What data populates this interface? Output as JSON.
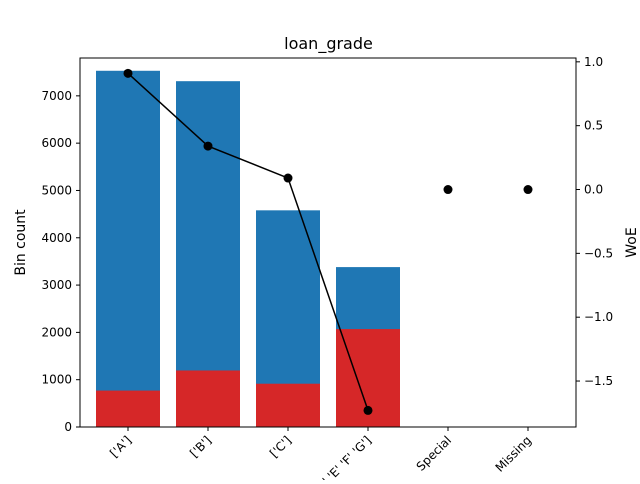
{
  "chart_data": {
    "type": "bar",
    "title": "loan_grade",
    "ylabel": "Bin count",
    "y2label": "WoE",
    "categories": [
      "['A']",
      "['B']",
      "['C']",
      "['D' 'E' 'F' 'G']",
      "Special",
      "Missing"
    ],
    "series": [
      {
        "values": [
          7530,
          7310,
          4580,
          3380,
          0,
          0
        ],
        "role": "bin count total",
        "color": "#1f77b4"
      },
      {
        "values": [
          770,
          1195,
          915,
          2070,
          0,
          0
        ],
        "role": "event count",
        "color": "#d62728"
      },
      {
        "values": [
          0.91,
          0.34,
          0.09,
          -1.73,
          0.0,
          0.0
        ],
        "role": "WoE",
        "axis": "right",
        "color": "#000000"
      }
    ],
    "ylim": [
      0,
      7800
    ],
    "y2lim": [
      -1.86,
      1.03
    ],
    "yticks": [
      0,
      1000,
      2000,
      3000,
      4000,
      5000,
      6000,
      7000
    ],
    "y2ticks": [
      1.0,
      0.5,
      0.0,
      -0.5,
      -1.0,
      -1.5
    ],
    "y2tick_labels": [
      "1.0",
      "0.5",
      "0.0",
      "−0.5",
      "−1.0",
      "−1.5"
    ],
    "grid": false,
    "legend": "none"
  }
}
